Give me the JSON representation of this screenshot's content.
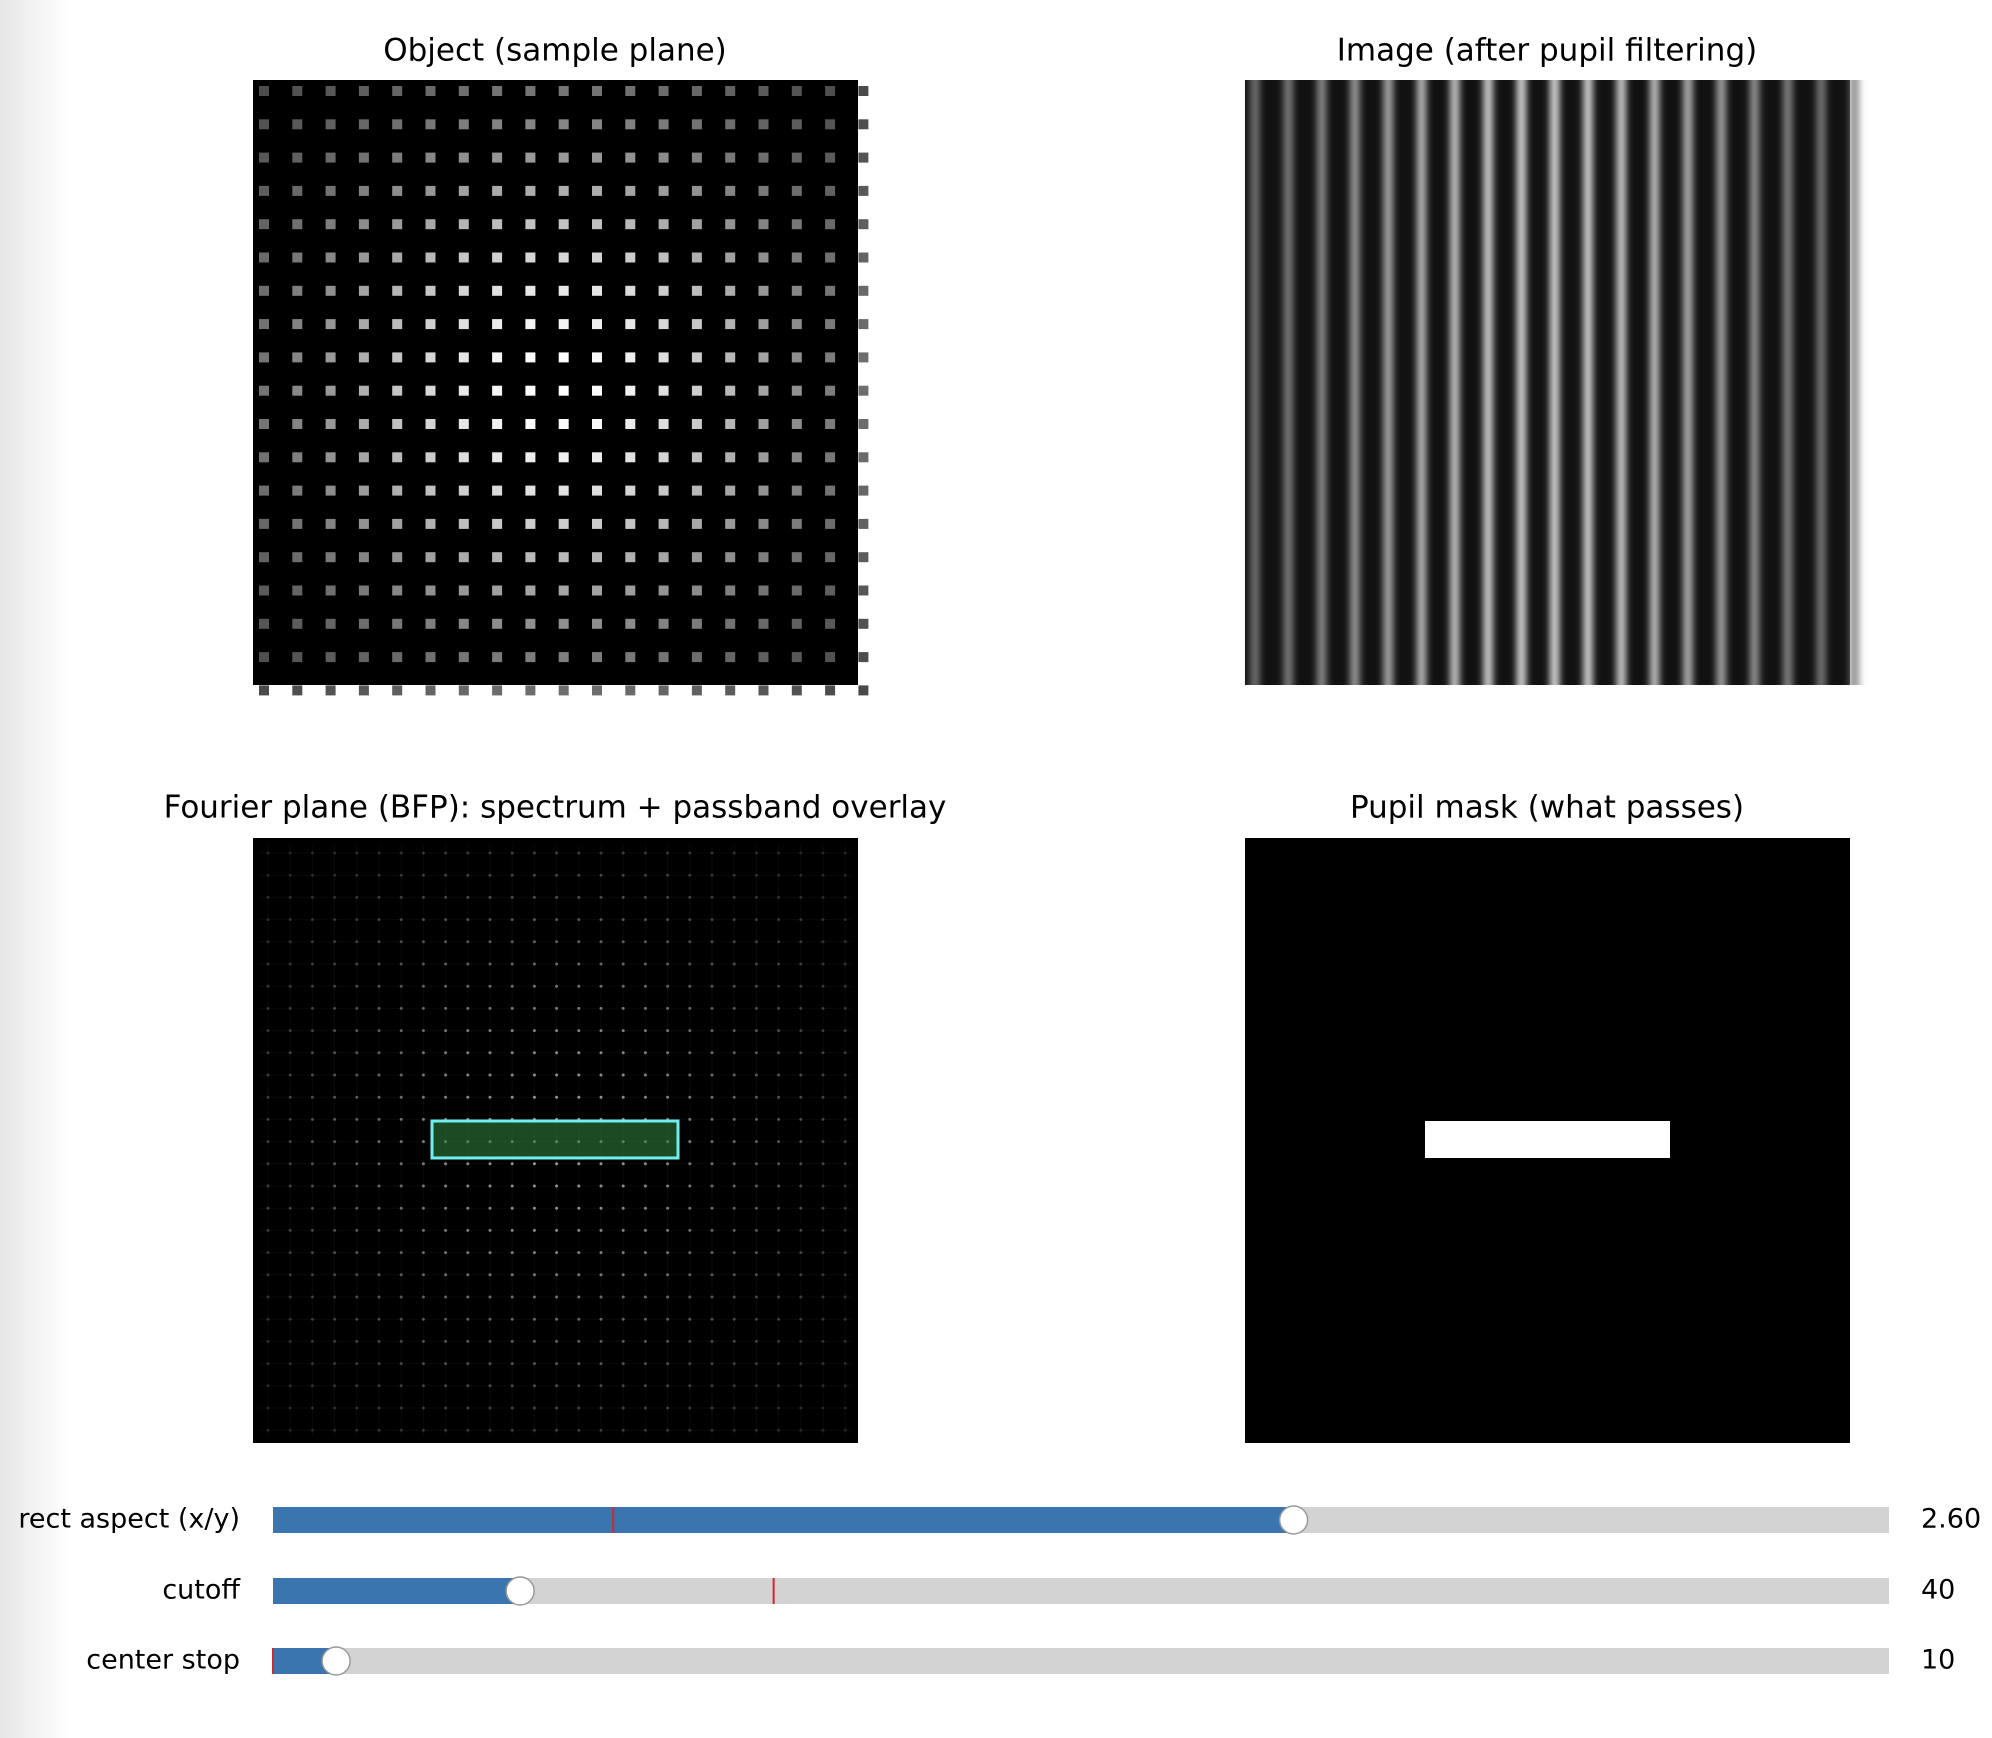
{
  "panels": [
    {
      "title": "Object (sample plane)"
    },
    {
      "title": "Image (after pupil filtering)"
    },
    {
      "title": "Fourier plane (BFP): spectrum + passband overlay"
    },
    {
      "title": "Pupil mask (what passes)"
    }
  ],
  "sliders": [
    {
      "label": "rect aspect (x/y)",
      "value": 2.6,
      "value_label": "2.60",
      "min": 0.2,
      "max": 4,
      "init": 1
    },
    {
      "label": "cutoff",
      "value": 40,
      "min": 1,
      "max": 256,
      "init": 80
    },
    {
      "label": "center stop",
      "value": 10,
      "min": 0,
      "max": 256,
      "init": 0
    }
  ]
}
